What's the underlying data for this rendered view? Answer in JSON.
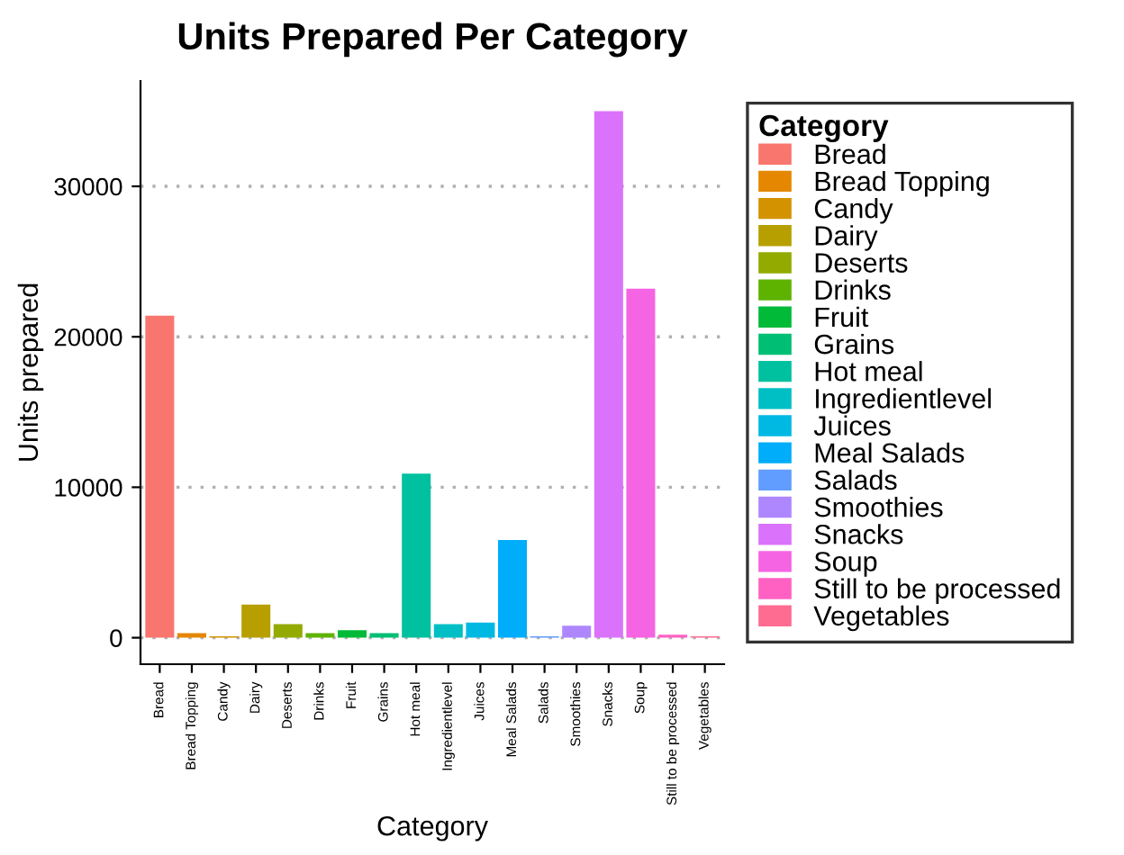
{
  "chart_data": {
    "type": "bar",
    "title": "Units Prepared Per Category",
    "xlabel": "Category",
    "ylabel": "Units prepared",
    "legend_title": "Category",
    "categories": [
      "Bread",
      "Bread Topping",
      "Candy",
      "Dairy",
      "Deserts",
      "Drinks",
      "Fruit",
      "Grains",
      "Hot meal",
      "Ingredientlevel",
      "Juices",
      "Meal Salads",
      "Salads",
      "Smoothies",
      "Snacks",
      "Soup",
      "Still to be processed",
      "Vegetables"
    ],
    "series": [
      {
        "name": "Bread",
        "color": "#F8766D",
        "values": [
          21400,
          null,
          null,
          null,
          null,
          null,
          null,
          null,
          null,
          null,
          null,
          null,
          null,
          null,
          null,
          null,
          null,
          null
        ]
      },
      {
        "name": "Bread Topping",
        "color": "#E58700",
        "values": [
          null,
          300,
          null,
          null,
          null,
          null,
          null,
          null,
          null,
          null,
          null,
          null,
          null,
          null,
          null,
          null,
          null,
          null
        ]
      },
      {
        "name": "Candy",
        "color": "#D39200",
        "values": [
          null,
          null,
          100,
          null,
          null,
          null,
          null,
          null,
          null,
          null,
          null,
          null,
          null,
          null,
          null,
          null,
          null,
          null
        ]
      },
      {
        "name": "Dairy",
        "color": "#B79F00",
        "values": [
          null,
          null,
          null,
          2200,
          null,
          null,
          null,
          null,
          null,
          null,
          null,
          null,
          null,
          null,
          null,
          null,
          null,
          null
        ]
      },
      {
        "name": "Deserts",
        "color": "#93AA00",
        "values": [
          null,
          null,
          null,
          null,
          900,
          null,
          null,
          null,
          null,
          null,
          null,
          null,
          null,
          null,
          null,
          null,
          null,
          null
        ]
      },
      {
        "name": "Drinks",
        "color": "#5EB300",
        "values": [
          null,
          null,
          null,
          null,
          null,
          300,
          null,
          null,
          null,
          null,
          null,
          null,
          null,
          null,
          null,
          null,
          null,
          null
        ]
      },
      {
        "name": "Fruit",
        "color": "#00BA38",
        "values": [
          null,
          null,
          null,
          null,
          null,
          null,
          500,
          null,
          null,
          null,
          null,
          null,
          null,
          null,
          null,
          null,
          null,
          null
        ]
      },
      {
        "name": "Grains",
        "color": "#00BF74",
        "values": [
          null,
          null,
          null,
          null,
          null,
          null,
          null,
          300,
          null,
          null,
          null,
          null,
          null,
          null,
          null,
          null,
          null,
          null
        ]
      },
      {
        "name": "Hot meal",
        "color": "#00C19F",
        "values": [
          null,
          null,
          null,
          null,
          null,
          null,
          null,
          null,
          10900,
          null,
          null,
          null,
          null,
          null,
          null,
          null,
          null,
          null
        ]
      },
      {
        "name": "Ingredientlevel",
        "color": "#00BFC4",
        "values": [
          null,
          null,
          null,
          null,
          null,
          null,
          null,
          null,
          null,
          900,
          null,
          null,
          null,
          null,
          null,
          null,
          null,
          null
        ]
      },
      {
        "name": "Juices",
        "color": "#00B9E3",
        "values": [
          null,
          null,
          null,
          null,
          null,
          null,
          null,
          null,
          null,
          null,
          1000,
          null,
          null,
          null,
          null,
          null,
          null,
          null
        ]
      },
      {
        "name": "Meal Salads",
        "color": "#00ADFA",
        "values": [
          null,
          null,
          null,
          null,
          null,
          null,
          null,
          null,
          null,
          null,
          null,
          6500,
          null,
          null,
          null,
          null,
          null,
          null
        ]
      },
      {
        "name": "Salads",
        "color": "#619CFF",
        "values": [
          null,
          null,
          null,
          null,
          null,
          null,
          null,
          null,
          null,
          null,
          null,
          null,
          100,
          null,
          null,
          null,
          null,
          null
        ]
      },
      {
        "name": "Smoothies",
        "color": "#AE87FF",
        "values": [
          null,
          null,
          null,
          null,
          null,
          null,
          null,
          null,
          null,
          null,
          null,
          null,
          null,
          800,
          null,
          null,
          null,
          null
        ]
      },
      {
        "name": "Snacks",
        "color": "#DB72FB",
        "values": [
          null,
          null,
          null,
          null,
          null,
          null,
          null,
          null,
          null,
          null,
          null,
          null,
          null,
          null,
          35000,
          null,
          null,
          null
        ]
      },
      {
        "name": "Soup",
        "color": "#F564E3",
        "values": [
          null,
          null,
          null,
          null,
          null,
          null,
          null,
          null,
          null,
          null,
          null,
          null,
          null,
          null,
          null,
          23200,
          null,
          null
        ]
      },
      {
        "name": "Still to be processed",
        "color": "#FF61C3",
        "values": [
          null,
          null,
          null,
          null,
          null,
          null,
          null,
          null,
          null,
          null,
          null,
          null,
          null,
          null,
          null,
          null,
          200,
          null
        ]
      },
      {
        "name": "Vegetables",
        "color": "#FF6C91",
        "values": [
          null,
          null,
          null,
          null,
          null,
          null,
          null,
          null,
          null,
          null,
          null,
          null,
          null,
          null,
          null,
          null,
          null,
          100
        ]
      }
    ],
    "ylim": [
      -1760,
      37000
    ],
    "yticks": [
      0,
      10000,
      20000,
      30000
    ],
    "grid": "y",
    "legend": "right"
  }
}
